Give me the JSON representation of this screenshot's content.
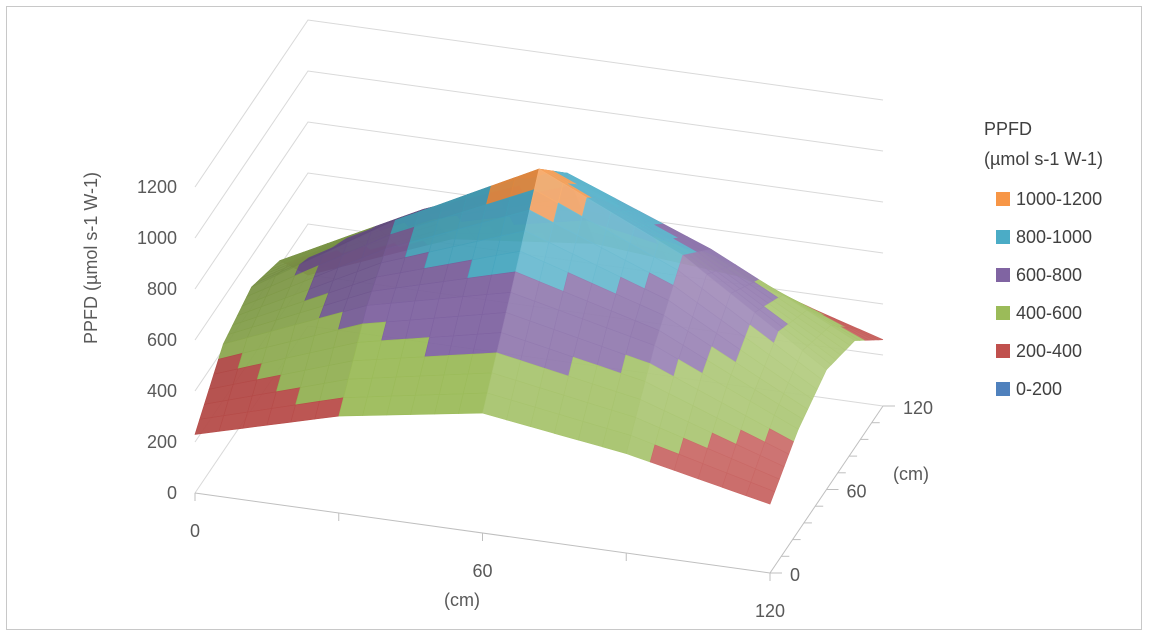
{
  "chart_data": {
    "type": "surface",
    "title": "",
    "zlabel": "PPFD (µmol s-1 W-1)",
    "xlabel": "(cm)",
    "ylabel": "(cm)",
    "z_ticks": [
      "0",
      "200",
      "400",
      "600",
      "800",
      "1000",
      "1200"
    ],
    "x_ticks": [
      "0",
      "60",
      "120"
    ],
    "y_ticks": [
      "0",
      "60",
      "120"
    ],
    "zlim": [
      0,
      1200
    ],
    "xlim": [
      0,
      120
    ],
    "ylim": [
      0,
      120
    ],
    "grid": true,
    "legend": {
      "position": "right",
      "title_line1": "PPFD",
      "title_line2": "(µmol s-1 W-1)",
      "bands": [
        {
          "label": "1000-1200",
          "color": "#f79646"
        },
        {
          "label": "800-1000",
          "color": "#4bacc6"
        },
        {
          "label": "600-800",
          "color": "#8064a2"
        },
        {
          "label": "400-600",
          "color": "#9bbb59"
        },
        {
          "label": "200-400",
          "color": "#c0504d"
        },
        {
          "label": "0-200",
          "color": "#4f81bd"
        }
      ]
    },
    "x": [
      0,
      30,
      60,
      90,
      120
    ],
    "y": [
      0,
      30,
      60,
      90,
      120
    ],
    "z": [
      [
        230,
        380,
        470,
        390,
        270
      ],
      [
        420,
        650,
        780,
        650,
        400
      ],
      [
        480,
        820,
        1100,
        840,
        470
      ],
      [
        420,
        700,
        920,
        700,
        420
      ],
      [
        200,
        420,
        480,
        430,
        260
      ]
    ]
  }
}
